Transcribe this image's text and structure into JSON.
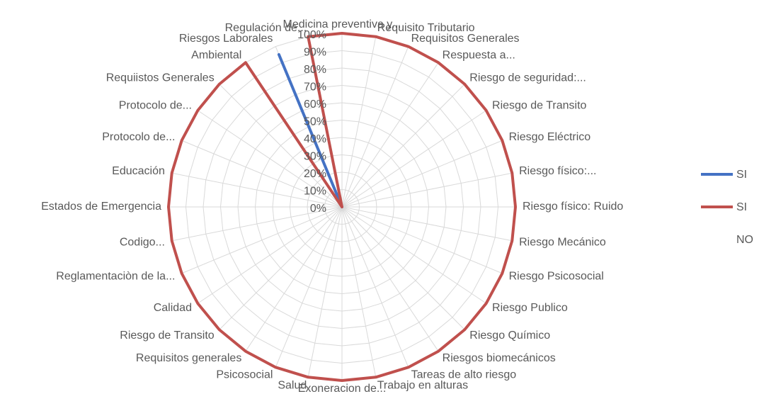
{
  "chart_data": {
    "type": "radar",
    "categories": [
      "Medicina preventiva y...",
      "Requisito Tributario",
      "Requisitos Generales",
      "Respuesta a...",
      "Riesgo de seguridad:...",
      "Riesgo de Transito",
      "Riesgo Eléctrico",
      "Riesgo físico:...",
      "Riesgo físico: Ruido",
      "Riesgo Mecánico",
      "Riesgo Psicosocial",
      "Riesgo Publico",
      "Riesgo Químico",
      "Riesgos biomecánicos",
      "Tareas de alto riesgo",
      "Trabajo en alturas",
      "Exoneracion de...",
      "Salud",
      "Psicosocial",
      "Requisitos generales",
      "Riesgo de Transito",
      "Calidad",
      "Reglamentaciòn de la...",
      "Codigo...",
      "Estados de Emergencia",
      "Educación",
      "Protocolo de...",
      "Protocolo de...",
      "Requiistos Generales",
      "Ambiental",
      "Riesgos Laborales",
      "Regulación de..."
    ],
    "series": [
      {
        "name": "SI",
        "color": "#4472c4",
        "values": [
          0,
          0,
          0,
          0,
          0,
          0,
          0,
          0,
          0,
          0,
          0,
          0,
          0,
          0,
          0,
          0,
          0,
          0,
          0,
          0,
          0,
          0,
          0,
          0,
          0,
          0,
          0,
          0,
          0,
          0,
          95,
          0
        ]
      },
      {
        "name": "SI",
        "color": "#c0504d",
        "values": [
          100,
          100,
          100,
          100,
          100,
          100,
          100,
          100,
          100,
          100,
          100,
          100,
          100,
          100,
          100,
          100,
          100,
          100,
          100,
          100,
          100,
          100,
          100,
          100,
          100,
          100,
          100,
          100,
          100,
          100,
          0,
          100
        ]
      },
      {
        "name": "NO",
        "color": "#ffffff",
        "values": [
          null,
          null,
          null,
          null,
          null,
          null,
          null,
          null,
          null,
          null,
          null,
          null,
          null,
          null,
          null,
          null,
          null,
          null,
          null,
          null,
          null,
          null,
          null,
          null,
          null,
          null,
          null,
          null,
          null,
          null,
          null,
          null
        ]
      }
    ],
    "ylim": [
      0,
      100
    ],
    "yticks": [
      {
        "value": 0,
        "label": "0%"
      },
      {
        "value": 10,
        "label": "10%"
      },
      {
        "value": 20,
        "label": "20%"
      },
      {
        "value": 30,
        "label": "30%"
      },
      {
        "value": 40,
        "label": "40%"
      },
      {
        "value": 50,
        "label": "50%"
      },
      {
        "value": 60,
        "label": "60%"
      },
      {
        "value": 70,
        "label": "70%"
      },
      {
        "value": 80,
        "label": "80%"
      },
      {
        "value": 90,
        "label": "90%"
      },
      {
        "value": 100,
        "label": "100%"
      }
    ],
    "grid": true,
    "legend": "right"
  }
}
